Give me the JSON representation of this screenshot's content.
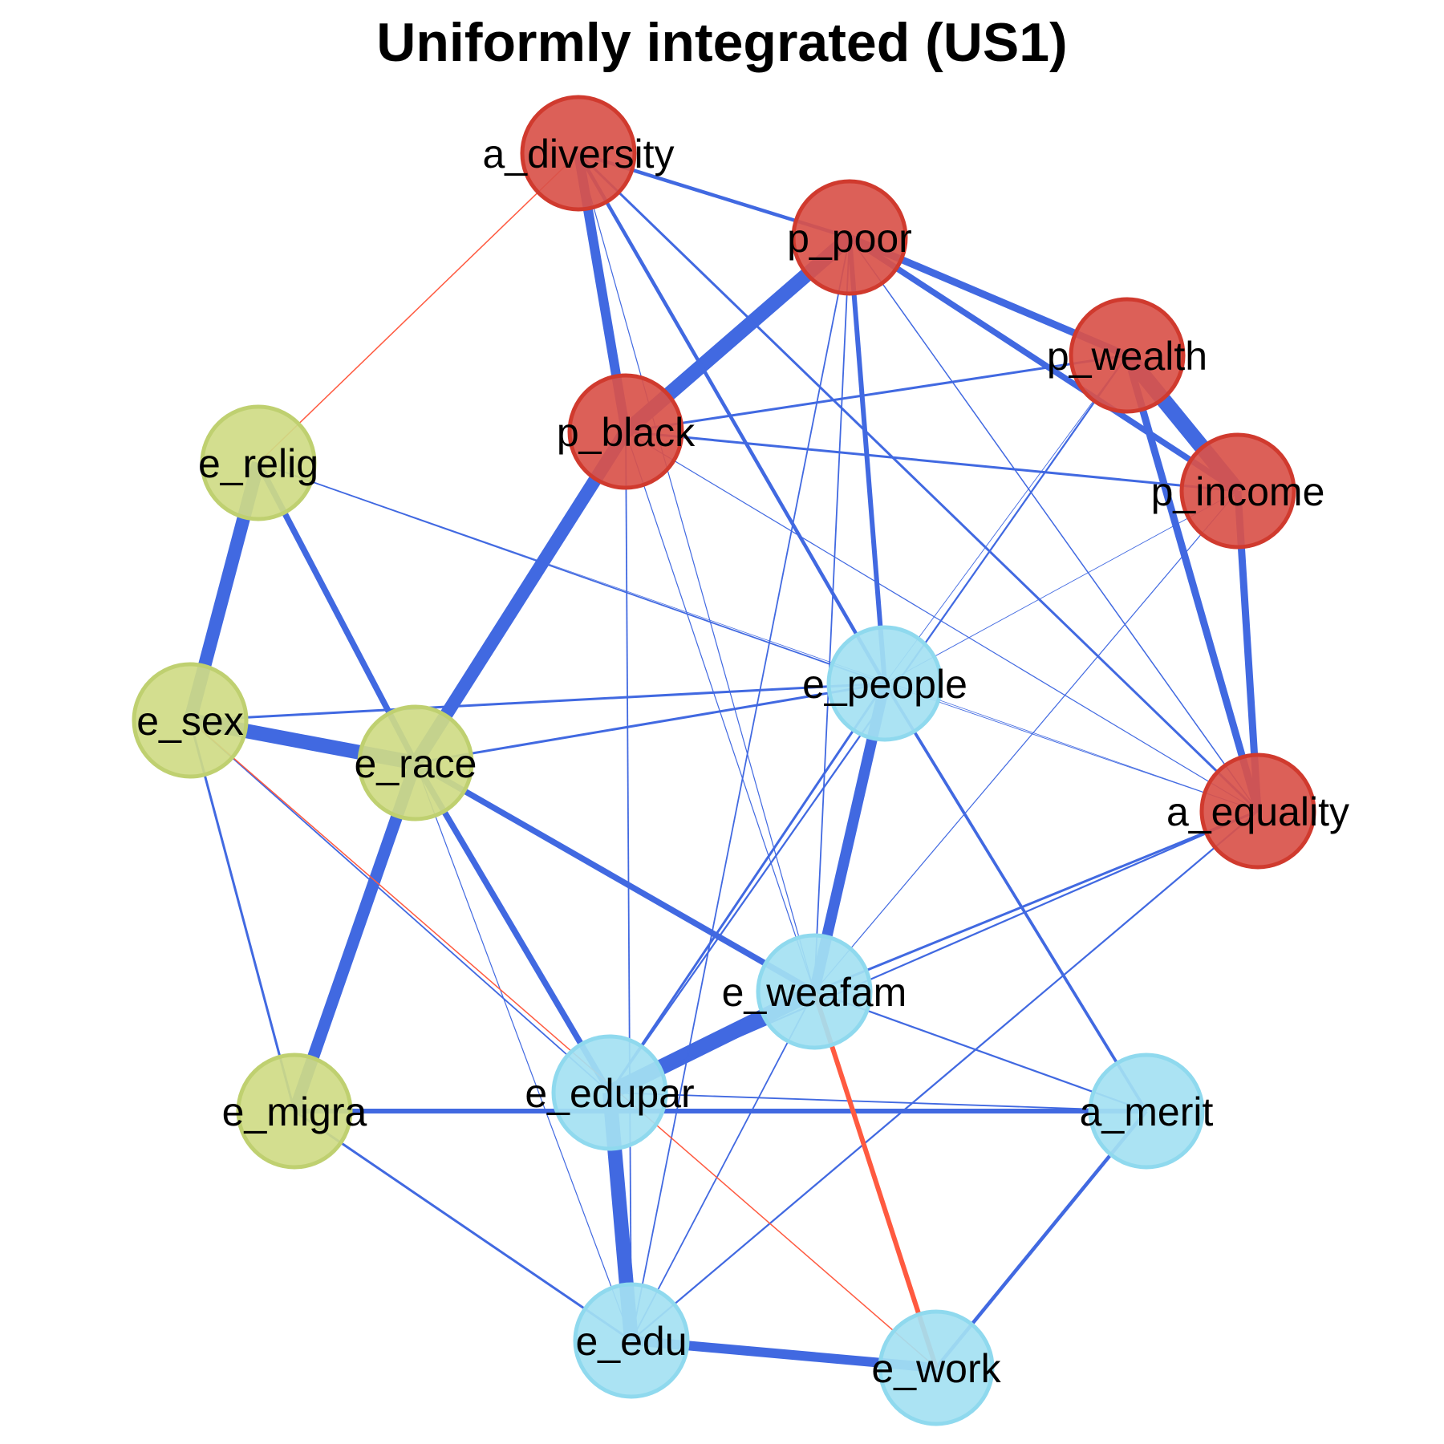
{
  "title": "Uniformly integrated (US1)",
  "colors": {
    "positive_edge": "#4169E1",
    "negative_edge": "#FF5A40",
    "group_red": "#D9534A",
    "group_red_border": "#D03A2E",
    "group_olive": "#CFDB85",
    "group_olive_border": "#BFD070",
    "group_blue": "#A4E1F2",
    "group_blue_border": "#8FD9EE"
  },
  "nodes": [
    {
      "id": "a_diversity",
      "label": "a_diversity",
      "group": "red"
    },
    {
      "id": "p_poor",
      "label": "p_poor",
      "group": "red"
    },
    {
      "id": "p_wealth",
      "label": "p_wealth",
      "group": "red"
    },
    {
      "id": "p_income",
      "label": "p_income",
      "group": "red"
    },
    {
      "id": "p_black",
      "label": "p_black",
      "group": "red"
    },
    {
      "id": "a_equality",
      "label": "a_equality",
      "group": "red"
    },
    {
      "id": "e_relig",
      "label": "e_relig",
      "group": "olive"
    },
    {
      "id": "e_sex",
      "label": "e_sex",
      "group": "olive"
    },
    {
      "id": "e_race",
      "label": "e_race",
      "group": "olive"
    },
    {
      "id": "e_migra",
      "label": "e_migra",
      "group": "olive"
    },
    {
      "id": "e_people",
      "label": "e_people",
      "group": "blue"
    },
    {
      "id": "e_weafam",
      "label": "e_weafam",
      "group": "blue"
    },
    {
      "id": "e_edupar",
      "label": "e_edupar",
      "group": "blue"
    },
    {
      "id": "a_merit",
      "label": "a_merit",
      "group": "blue"
    },
    {
      "id": "e_edu",
      "label": "e_edu",
      "group": "blue"
    },
    {
      "id": "e_work",
      "label": "e_work",
      "group": "blue"
    }
  ],
  "edges": [
    {
      "source": "p_poor",
      "target": "p_black",
      "weight": 12,
      "sign": "positive"
    },
    {
      "source": "p_black",
      "target": "e_race",
      "weight": 11,
      "sign": "positive"
    },
    {
      "source": "e_sex",
      "target": "e_race",
      "weight": 12,
      "sign": "positive"
    },
    {
      "source": "e_relig",
      "target": "e_sex",
      "weight": 11,
      "sign": "positive"
    },
    {
      "source": "e_race",
      "target": "e_migra",
      "weight": 10,
      "sign": "positive"
    },
    {
      "source": "e_edupar",
      "target": "e_edu",
      "weight": 12,
      "sign": "positive"
    },
    {
      "source": "e_weafam",
      "target": "e_edupar",
      "weight": 13,
      "sign": "positive"
    },
    {
      "source": "p_wealth",
      "target": "p_income",
      "weight": 13,
      "sign": "positive"
    },
    {
      "source": "e_people",
      "target": "e_weafam",
      "weight": 9,
      "sign": "positive"
    },
    {
      "source": "a_diversity",
      "target": "p_black",
      "weight": 8,
      "sign": "positive"
    },
    {
      "source": "e_edu",
      "target": "e_work",
      "weight": 8,
      "sign": "positive"
    },
    {
      "source": "p_poor",
      "target": "p_wealth",
      "weight": 6,
      "sign": "positive"
    },
    {
      "source": "p_poor",
      "target": "p_income",
      "weight": 5,
      "sign": "positive"
    },
    {
      "source": "p_wealth",
      "target": "a_equality",
      "weight": 6,
      "sign": "positive"
    },
    {
      "source": "p_income",
      "target": "a_equality",
      "weight": 6,
      "sign": "positive"
    },
    {
      "source": "e_relig",
      "target": "e_race",
      "weight": 5,
      "sign": "positive"
    },
    {
      "source": "e_race",
      "target": "e_weafam",
      "weight": 5,
      "sign": "positive"
    },
    {
      "source": "e_race",
      "target": "e_edupar",
      "weight": 5,
      "sign": "positive"
    },
    {
      "source": "p_poor",
      "target": "e_people",
      "weight": 4,
      "sign": "positive"
    },
    {
      "source": "e_migra",
      "target": "a_merit",
      "weight": 4,
      "sign": "positive"
    },
    {
      "source": "a_merit",
      "target": "e_work",
      "weight": 3,
      "sign": "positive"
    },
    {
      "source": "a_diversity",
      "target": "p_poor",
      "weight": 3,
      "sign": "positive"
    },
    {
      "source": "a_diversity",
      "target": "e_people",
      "weight": 3,
      "sign": "positive"
    },
    {
      "source": "a_diversity",
      "target": "a_equality",
      "weight": 2,
      "sign": "positive"
    },
    {
      "source": "p_black",
      "target": "p_wealth",
      "weight": 2,
      "sign": "positive"
    },
    {
      "source": "p_black",
      "target": "p_income",
      "weight": 2,
      "sign": "positive"
    },
    {
      "source": "e_sex",
      "target": "e_people",
      "weight": 2,
      "sign": "positive"
    },
    {
      "source": "e_race",
      "target": "e_people",
      "weight": 2,
      "sign": "positive"
    },
    {
      "source": "e_sex",
      "target": "e_migra",
      "weight": 2,
      "sign": "positive"
    },
    {
      "source": "e_migra",
      "target": "e_edu",
      "weight": 2,
      "sign": "positive"
    },
    {
      "source": "e_people",
      "target": "a_merit",
      "weight": 2.5,
      "sign": "positive"
    },
    {
      "source": "e_people",
      "target": "e_edupar",
      "weight": 2,
      "sign": "positive"
    },
    {
      "source": "e_weafam",
      "target": "a_equality",
      "weight": 2,
      "sign": "positive"
    },
    {
      "source": "e_edupar",
      "target": "a_equality",
      "weight": 1.5,
      "sign": "positive"
    },
    {
      "source": "e_weafam",
      "target": "a_merit",
      "weight": 1.5,
      "sign": "positive"
    },
    {
      "source": "e_edupar",
      "target": "a_merit",
      "weight": 1.2,
      "sign": "positive"
    },
    {
      "source": "e_edu",
      "target": "a_equality",
      "weight": 1.5,
      "sign": "positive"
    },
    {
      "source": "e_edu",
      "target": "e_weafam",
      "weight": 1.2,
      "sign": "positive"
    },
    {
      "source": "e_edu",
      "target": "p_poor",
      "weight": 1.2,
      "sign": "positive"
    },
    {
      "source": "e_edu",
      "target": "p_black",
      "weight": 1.2,
      "sign": "positive"
    },
    {
      "source": "e_edupar",
      "target": "p_wealth",
      "weight": 1.5,
      "sign": "positive"
    },
    {
      "source": "e_weafam",
      "target": "p_poor",
      "weight": 1.2,
      "sign": "positive"
    },
    {
      "source": "e_weafam",
      "target": "p_black",
      "weight": 0.8,
      "sign": "positive"
    },
    {
      "source": "e_weafam",
      "target": "a_diversity",
      "weight": 0.8,
      "sign": "positive"
    },
    {
      "source": "e_weafam",
      "target": "p_income",
      "weight": 0.8,
      "sign": "positive"
    },
    {
      "source": "e_relig",
      "target": "e_people",
      "weight": 1.2,
      "sign": "positive"
    },
    {
      "source": "e_sex",
      "target": "e_edupar",
      "weight": 1.2,
      "sign": "positive"
    },
    {
      "source": "e_race",
      "target": "e_edu",
      "weight": 0.8,
      "sign": "positive"
    },
    {
      "source": "p_poor",
      "target": "a_equality",
      "weight": 1,
      "sign": "positive"
    },
    {
      "source": "p_black",
      "target": "a_equality",
      "weight": 0.8,
      "sign": "positive"
    },
    {
      "source": "e_people",
      "target": "p_wealth",
      "weight": 0.6,
      "sign": "positive"
    },
    {
      "source": "e_people",
      "target": "p_income",
      "weight": 0.6,
      "sign": "positive"
    },
    {
      "source": "e_people",
      "target": "a_equality",
      "weight": 0.6,
      "sign": "positive"
    },
    {
      "source": "e_relig",
      "target": "a_equality",
      "weight": 0.5,
      "sign": "positive"
    },
    {
      "source": "a_diversity",
      "target": "e_relig",
      "weight": 1,
      "sign": "negative"
    },
    {
      "source": "e_weafam",
      "target": "e_work",
      "weight": 4,
      "sign": "negative"
    },
    {
      "source": "e_sex",
      "target": "e_work",
      "weight": 1,
      "sign": "negative"
    }
  ]
}
